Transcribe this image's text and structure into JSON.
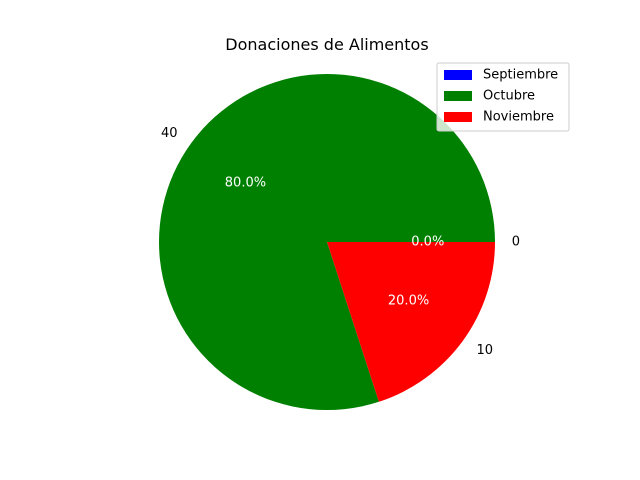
{
  "chart_data": {
    "type": "pie",
    "title": "Donaciones de Alimentos",
    "categories": [
      "Septiembre",
      "Octubre",
      "Noviembre"
    ],
    "values": [
      0,
      40,
      10
    ],
    "value_labels": [
      "0",
      "40",
      "10"
    ],
    "percent_labels": [
      "0.0%",
      "80.0%",
      "20.0%"
    ],
    "colors": [
      "#0000ff",
      "#008000",
      "#ff0000"
    ],
    "start_angle_deg": 0,
    "direction": "counterclockwise",
    "legend": {
      "position": "top-right",
      "entries": [
        "Septiembre",
        "Octubre",
        "Noviembre"
      ]
    }
  }
}
